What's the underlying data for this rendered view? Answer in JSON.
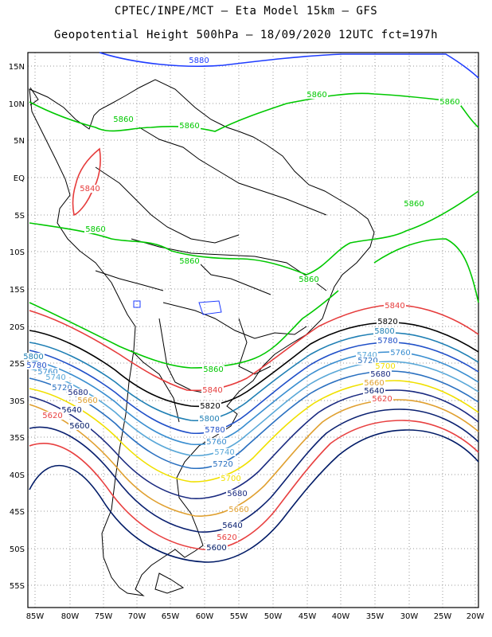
{
  "header": {
    "line1": "CPTEC/INPE/MCT –  Eta Model 15km – GFS",
    "line2": "Geopotential Height 500hPa – 18/09/2020 12UTC fct=197h"
  },
  "axes": {
    "lat_labels": [
      "15N",
      "10N",
      "5N",
      "EQ",
      "5S",
      "10S",
      "15S",
      "20S",
      "25S",
      "30S",
      "35S",
      "40S",
      "45S",
      "50S",
      "55S"
    ],
    "lon_labels": [
      "85W",
      "80W",
      "75W",
      "70W",
      "65W",
      "60W",
      "55W",
      "50W",
      "45W",
      "40W",
      "35W",
      "30W",
      "25W",
      "20W"
    ]
  },
  "colors": {
    "c5880": "#1e3cff",
    "c5860": "#00c800",
    "c5840": "#e63c3c",
    "c5820": "#000000",
    "c5800": "#1f7fb4",
    "c5780": "#2050c8",
    "c5760": "#3a8ed0",
    "c5740": "#5aa8d8",
    "c5720": "#2a70c0",
    "c5700": "#f0e000",
    "c5680": "#1a2a80",
    "c5660": "#e0a030",
    "c5640": "#0a2070",
    "c5620": "#e84040",
    "c5600": "#001a66"
  },
  "contour_labels": [
    {
      "id": "l5880a",
      "text": "5880"
    },
    {
      "id": "l5860a",
      "text": "5860"
    },
    {
      "id": "l5860b",
      "text": "5860"
    },
    {
      "id": "l5860c",
      "text": "5860"
    },
    {
      "id": "l5860d",
      "text": "5860"
    },
    {
      "id": "l5860e",
      "text": "5860"
    },
    {
      "id": "l5860f",
      "text": "5860"
    },
    {
      "id": "l5860g",
      "text": "5860"
    },
    {
      "id": "l5860h",
      "text": "5860"
    },
    {
      "id": "l5860i",
      "text": "5860"
    },
    {
      "id": "l5840a",
      "text": "5840"
    },
    {
      "id": "l5840b",
      "text": "5840"
    },
    {
      "id": "l5840c",
      "text": "5840"
    },
    {
      "id": "l5820a",
      "text": "5820"
    },
    {
      "id": "l5820b",
      "text": "5820"
    },
    {
      "id": "l5800a",
      "text": "5800"
    },
    {
      "id": "l5800b",
      "text": "5800"
    },
    {
      "id": "l5800c",
      "text": "5800"
    },
    {
      "id": "l5780a",
      "text": "5780"
    },
    {
      "id": "l5780b",
      "text": "5780"
    },
    {
      "id": "l5780c",
      "text": "5780"
    },
    {
      "id": "l5760a",
      "text": "5760"
    },
    {
      "id": "l5760b",
      "text": "5760"
    },
    {
      "id": "l5760c",
      "text": "5760"
    },
    {
      "id": "l5740a",
      "text": "5740"
    },
    {
      "id": "l5740b",
      "text": "5740"
    },
    {
      "id": "l5740c",
      "text": "5740"
    },
    {
      "id": "l5720a",
      "text": "5720"
    },
    {
      "id": "l5720b",
      "text": "5720"
    },
    {
      "id": "l5720c",
      "text": "5720"
    },
    {
      "id": "l5700a",
      "text": "5700"
    },
    {
      "id": "l5700b",
      "text": "5700"
    },
    {
      "id": "l5680a",
      "text": "5680"
    },
    {
      "id": "l5680b",
      "text": "5680"
    },
    {
      "id": "l5680c",
      "text": "5680"
    },
    {
      "id": "l5660a",
      "text": "5660"
    },
    {
      "id": "l5660b",
      "text": "5660"
    },
    {
      "id": "l5660c",
      "text": "5660"
    },
    {
      "id": "l5640a",
      "text": "5640"
    },
    {
      "id": "l5640b",
      "text": "5640"
    },
    {
      "id": "l5640c",
      "text": "5640"
    },
    {
      "id": "l5620a",
      "text": "5620"
    },
    {
      "id": "l5620b",
      "text": "5620"
    },
    {
      "id": "l5620c",
      "text": "5620"
    },
    {
      "id": "l5600a",
      "text": "5600"
    },
    {
      "id": "l5600b",
      "text": "5600"
    }
  ]
}
